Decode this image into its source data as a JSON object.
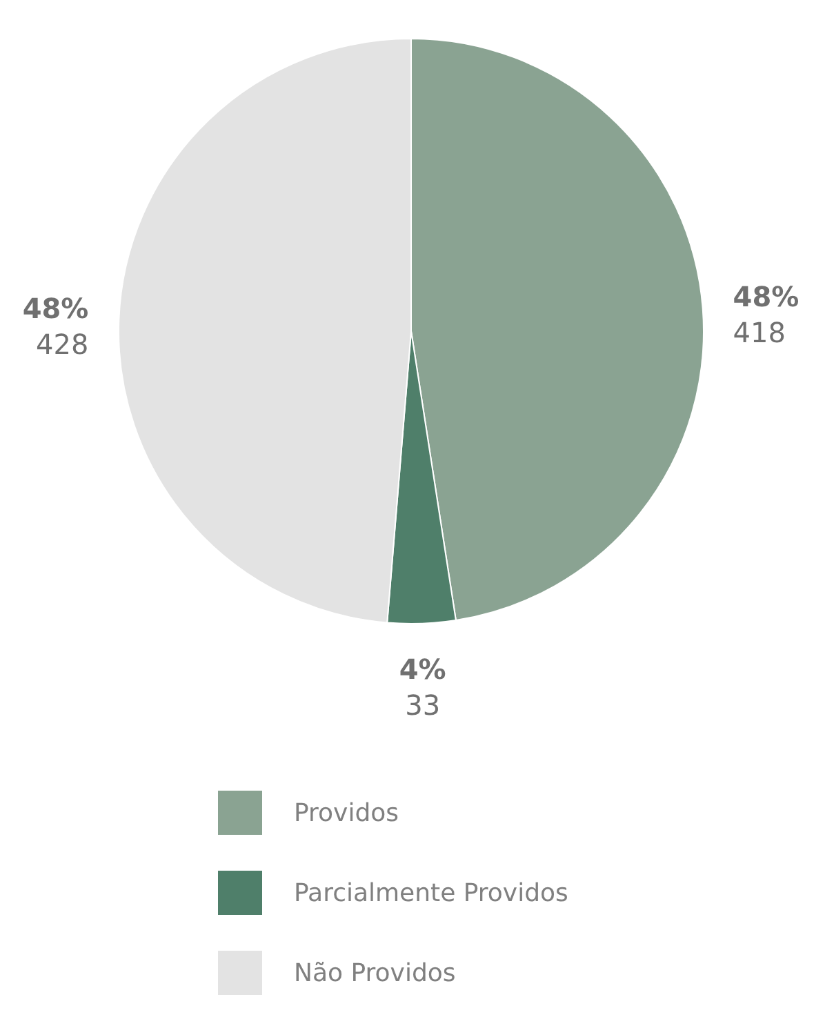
{
  "chart_data": {
    "type": "pie",
    "categories": [
      "Providos",
      "Parcialmente Providos",
      "Não Providos"
    ],
    "values": [
      418,
      33,
      428
    ],
    "colors": [
      "#8aa392",
      "#4f7f6a",
      "#e3e3e3"
    ],
    "value_labels": [
      "48%\n418",
      "4%\n33",
      "48%\n428"
    ],
    "legend": "bottom"
  }
}
